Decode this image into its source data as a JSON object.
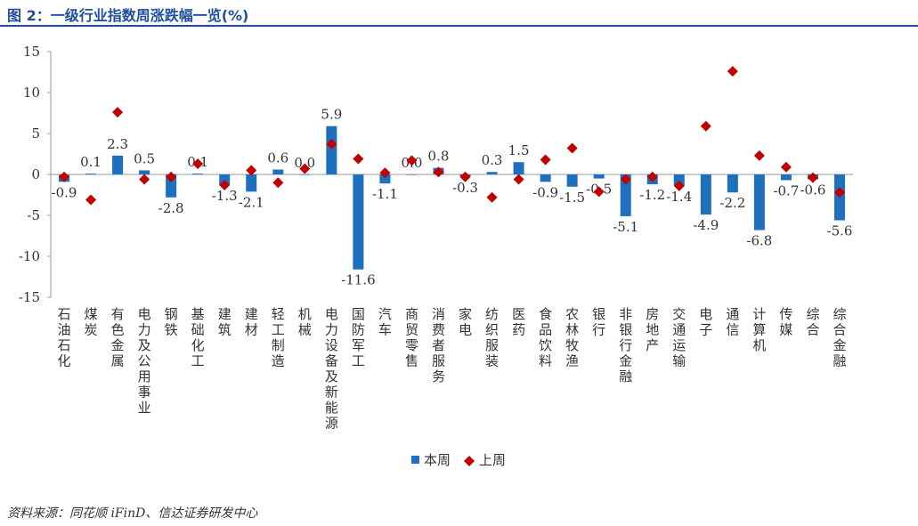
{
  "title": "图 2：一级行业指数周涨跌幅一览(%)",
  "source": "资料来源：同花顺 iFinD、信达证券研发中心",
  "chart_data": {
    "type": "bar",
    "ylim": [
      -15,
      15
    ],
    "yticks": [
      15,
      10,
      5,
      0,
      -5,
      -10,
      -15
    ],
    "legend_position": "bottom",
    "colors": {
      "bar": "#1f6fbf",
      "marker": "#c00000"
    },
    "categories": [
      "石油石化",
      "煤炭",
      "有色金属",
      "电力及公用事业",
      "钢铁",
      "基础化工",
      "建筑",
      "建材",
      "轻工制造",
      "机械",
      "电力设备及新能源",
      "国防军工",
      "汽车",
      "商贸零售",
      "消费者服务",
      "家电",
      "纺织服装",
      "医药",
      "食品饮料",
      "农林牧渔",
      "银行",
      "非银行金融",
      "房地产",
      "交通运输",
      "电子",
      "通信",
      "计算机",
      "传媒",
      "综合",
      "综合金融"
    ],
    "series": [
      {
        "name": "本周",
        "type": "bar",
        "values": [
          -0.9,
          0.1,
          2.3,
          0.5,
          -2.8,
          0.1,
          -1.3,
          -2.1,
          0.6,
          0.0,
          5.9,
          -11.6,
          -1.1,
          0.0,
          0.8,
          -0.3,
          0.3,
          1.5,
          -0.9,
          -1.5,
          -0.5,
          -5.1,
          -1.2,
          -1.4,
          -4.9,
          -2.2,
          -6.8,
          -0.7,
          -0.6,
          -5.6
        ],
        "labels": [
          "-0.9",
          "0.1",
          "2.3",
          "0.5",
          "-2.8",
          "0.1",
          "-1.3",
          "-2.1",
          "0.6",
          "0.0",
          "5.9",
          "-11.6",
          "-1.1",
          "0.0",
          "0.8",
          "-0.3",
          "0.3",
          "1.5",
          "-0.9",
          "-1.5",
          "-0.5",
          "-5.1",
          "-1.2",
          "-1.4",
          "-4.9",
          "-2.2",
          "-6.8",
          "-0.7",
          "-0.6",
          "-5.6"
        ]
      },
      {
        "name": "上周",
        "type": "scatter",
        "marker": "diamond",
        "values": [
          -0.3,
          -3.1,
          7.6,
          -0.6,
          -0.3,
          1.3,
          -1.3,
          0.5,
          -1.0,
          0.7,
          3.7,
          1.9,
          0.2,
          1.7,
          0.3,
          -0.3,
          -2.8,
          -0.6,
          1.8,
          3.2,
          -2.1,
          -0.6,
          -0.3,
          -1.4,
          5.9,
          12.6,
          2.3,
          0.9,
          -0.4,
          -2.2
        ]
      }
    ]
  }
}
